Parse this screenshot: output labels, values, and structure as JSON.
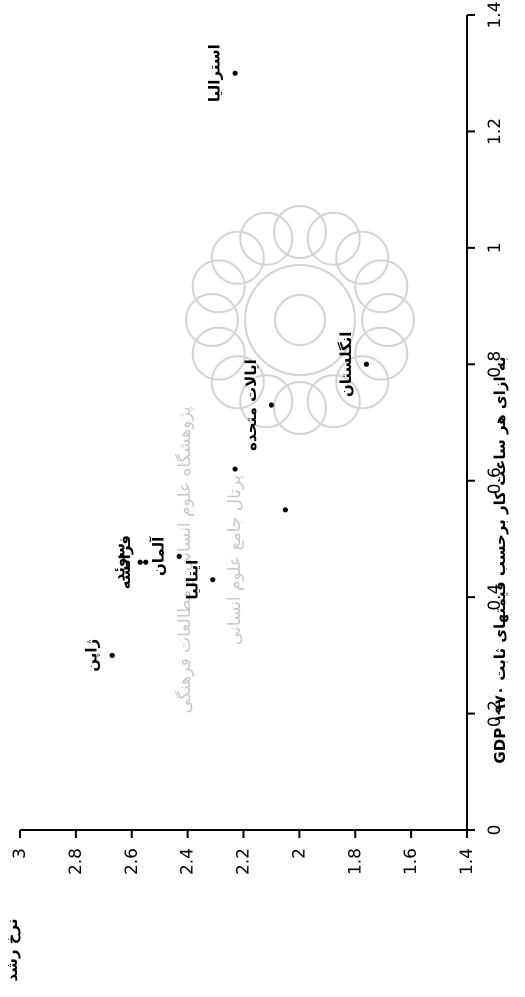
{
  "chart_data": {
    "type": "scatter",
    "title": "",
    "xlabel": "GDP به ازای هر ساعت کار برحسب قیمتهای ثابت ۱۹۷۰",
    "ylabel": "نرخ رشد",
    "xlim": [
      0,
      1.4
    ],
    "ylim": [
      1.4,
      3
    ],
    "x_ticks": [
      "0",
      "0.2",
      "0.4",
      "0.6",
      "0.8",
      "1",
      "1.2",
      "1.4"
    ],
    "y_ticks": [
      "1.4",
      "1.6",
      "1.8",
      "2",
      "2.2",
      "2.4",
      "2.6",
      "2.8",
      "3"
    ],
    "points": [
      {
        "label": "ژاپن",
        "x": 0.3,
        "y": 2.67
      },
      {
        "label": "سوئد",
        "x": 0.46,
        "y": 2.57
      },
      {
        "label": "فرانسه",
        "x": 0.46,
        "y": 2.55
      },
      {
        "label": "آلمان",
        "x": 0.47,
        "y": 2.43
      },
      {
        "label": "ایتالیا",
        "x": 0.43,
        "y": 2.31
      },
      {
        "label": "",
        "x": 0.55,
        "y": 2.05
      },
      {
        "label": "",
        "x": 0.62,
        "y": 2.23
      },
      {
        "label": "ایالات متحده",
        "x": 0.73,
        "y": 2.1
      },
      {
        "label": "انگلستان",
        "x": 0.8,
        "y": 1.76
      },
      {
        "label": "استرالیا",
        "x": 1.3,
        "y": 2.23
      }
    ],
    "grid": false
  },
  "watermark": {
    "line1": "پژوهشگاه علوم انسانی و مطالعات فرهنگی",
    "line2": "پرتال جامع علوم انسانی"
  }
}
